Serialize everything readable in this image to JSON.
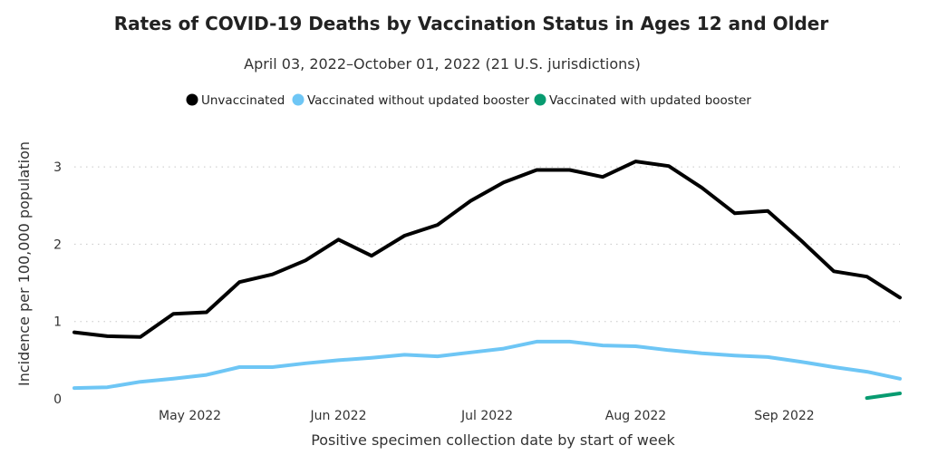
{
  "chart_data": {
    "type": "line",
    "title": "Rates of COVID-19 Deaths by Vaccination Status in Ages 12 and Older",
    "subtitle": "April 03, 2022–October 01, 2022 (21 U.S. jurisdictions)",
    "xlabel": "Positive specimen collection date by start of week",
    "ylabel": "Incidence per 100,000 population",
    "ylim": [
      0,
      3.5
    ],
    "y_ticks": [
      "0",
      "1",
      "2",
      "3"
    ],
    "x_tick_labels": [
      "May 2022",
      "Jun 2022",
      "Jul 2022",
      "Aug 2022",
      "Sep 2022"
    ],
    "x_tick_weeks": [
      3.5,
      8,
      12.5,
      17,
      21.5
    ],
    "grid": true,
    "legend_position": "top-center",
    "weeks": [
      "2022-04-03",
      "2022-04-10",
      "2022-04-17",
      "2022-04-24",
      "2022-05-01",
      "2022-05-08",
      "2022-05-15",
      "2022-05-22",
      "2022-05-29",
      "2022-06-05",
      "2022-06-12",
      "2022-06-19",
      "2022-06-26",
      "2022-07-03",
      "2022-07-10",
      "2022-07-17",
      "2022-07-24",
      "2022-07-31",
      "2022-08-07",
      "2022-08-14",
      "2022-08-21",
      "2022-08-28",
      "2022-09-04",
      "2022-09-11",
      "2022-09-18",
      "2022-09-25"
    ],
    "series": [
      {
        "name": "Unvaccinated",
        "color": "#000000",
        "values": [
          0.86,
          0.81,
          0.8,
          1.1,
          1.12,
          1.51,
          1.61,
          1.79,
          2.06,
          1.85,
          2.11,
          2.25,
          2.56,
          2.8,
          2.96,
          2.96,
          2.87,
          3.07,
          3.01,
          2.73,
          2.4,
          2.43,
          2.05,
          1.65,
          1.58,
          1.31
        ]
      },
      {
        "name": "Vaccinated without updated booster",
        "color": "#6EC6F5",
        "values": [
          0.14,
          0.15,
          0.22,
          0.26,
          0.31,
          0.41,
          0.41,
          0.46,
          0.5,
          0.53,
          0.57,
          0.55,
          0.6,
          0.65,
          0.74,
          0.74,
          0.69,
          0.68,
          0.63,
          0.59,
          0.56,
          0.54,
          0.48,
          0.41,
          0.35,
          0.26
        ]
      },
      {
        "name": "Vaccinated with updated booster",
        "color": "#079B70",
        "values": [
          null,
          null,
          null,
          null,
          null,
          null,
          null,
          null,
          null,
          null,
          null,
          null,
          null,
          null,
          null,
          null,
          null,
          null,
          null,
          null,
          null,
          null,
          null,
          null,
          0.01,
          0.07
        ]
      }
    ]
  }
}
